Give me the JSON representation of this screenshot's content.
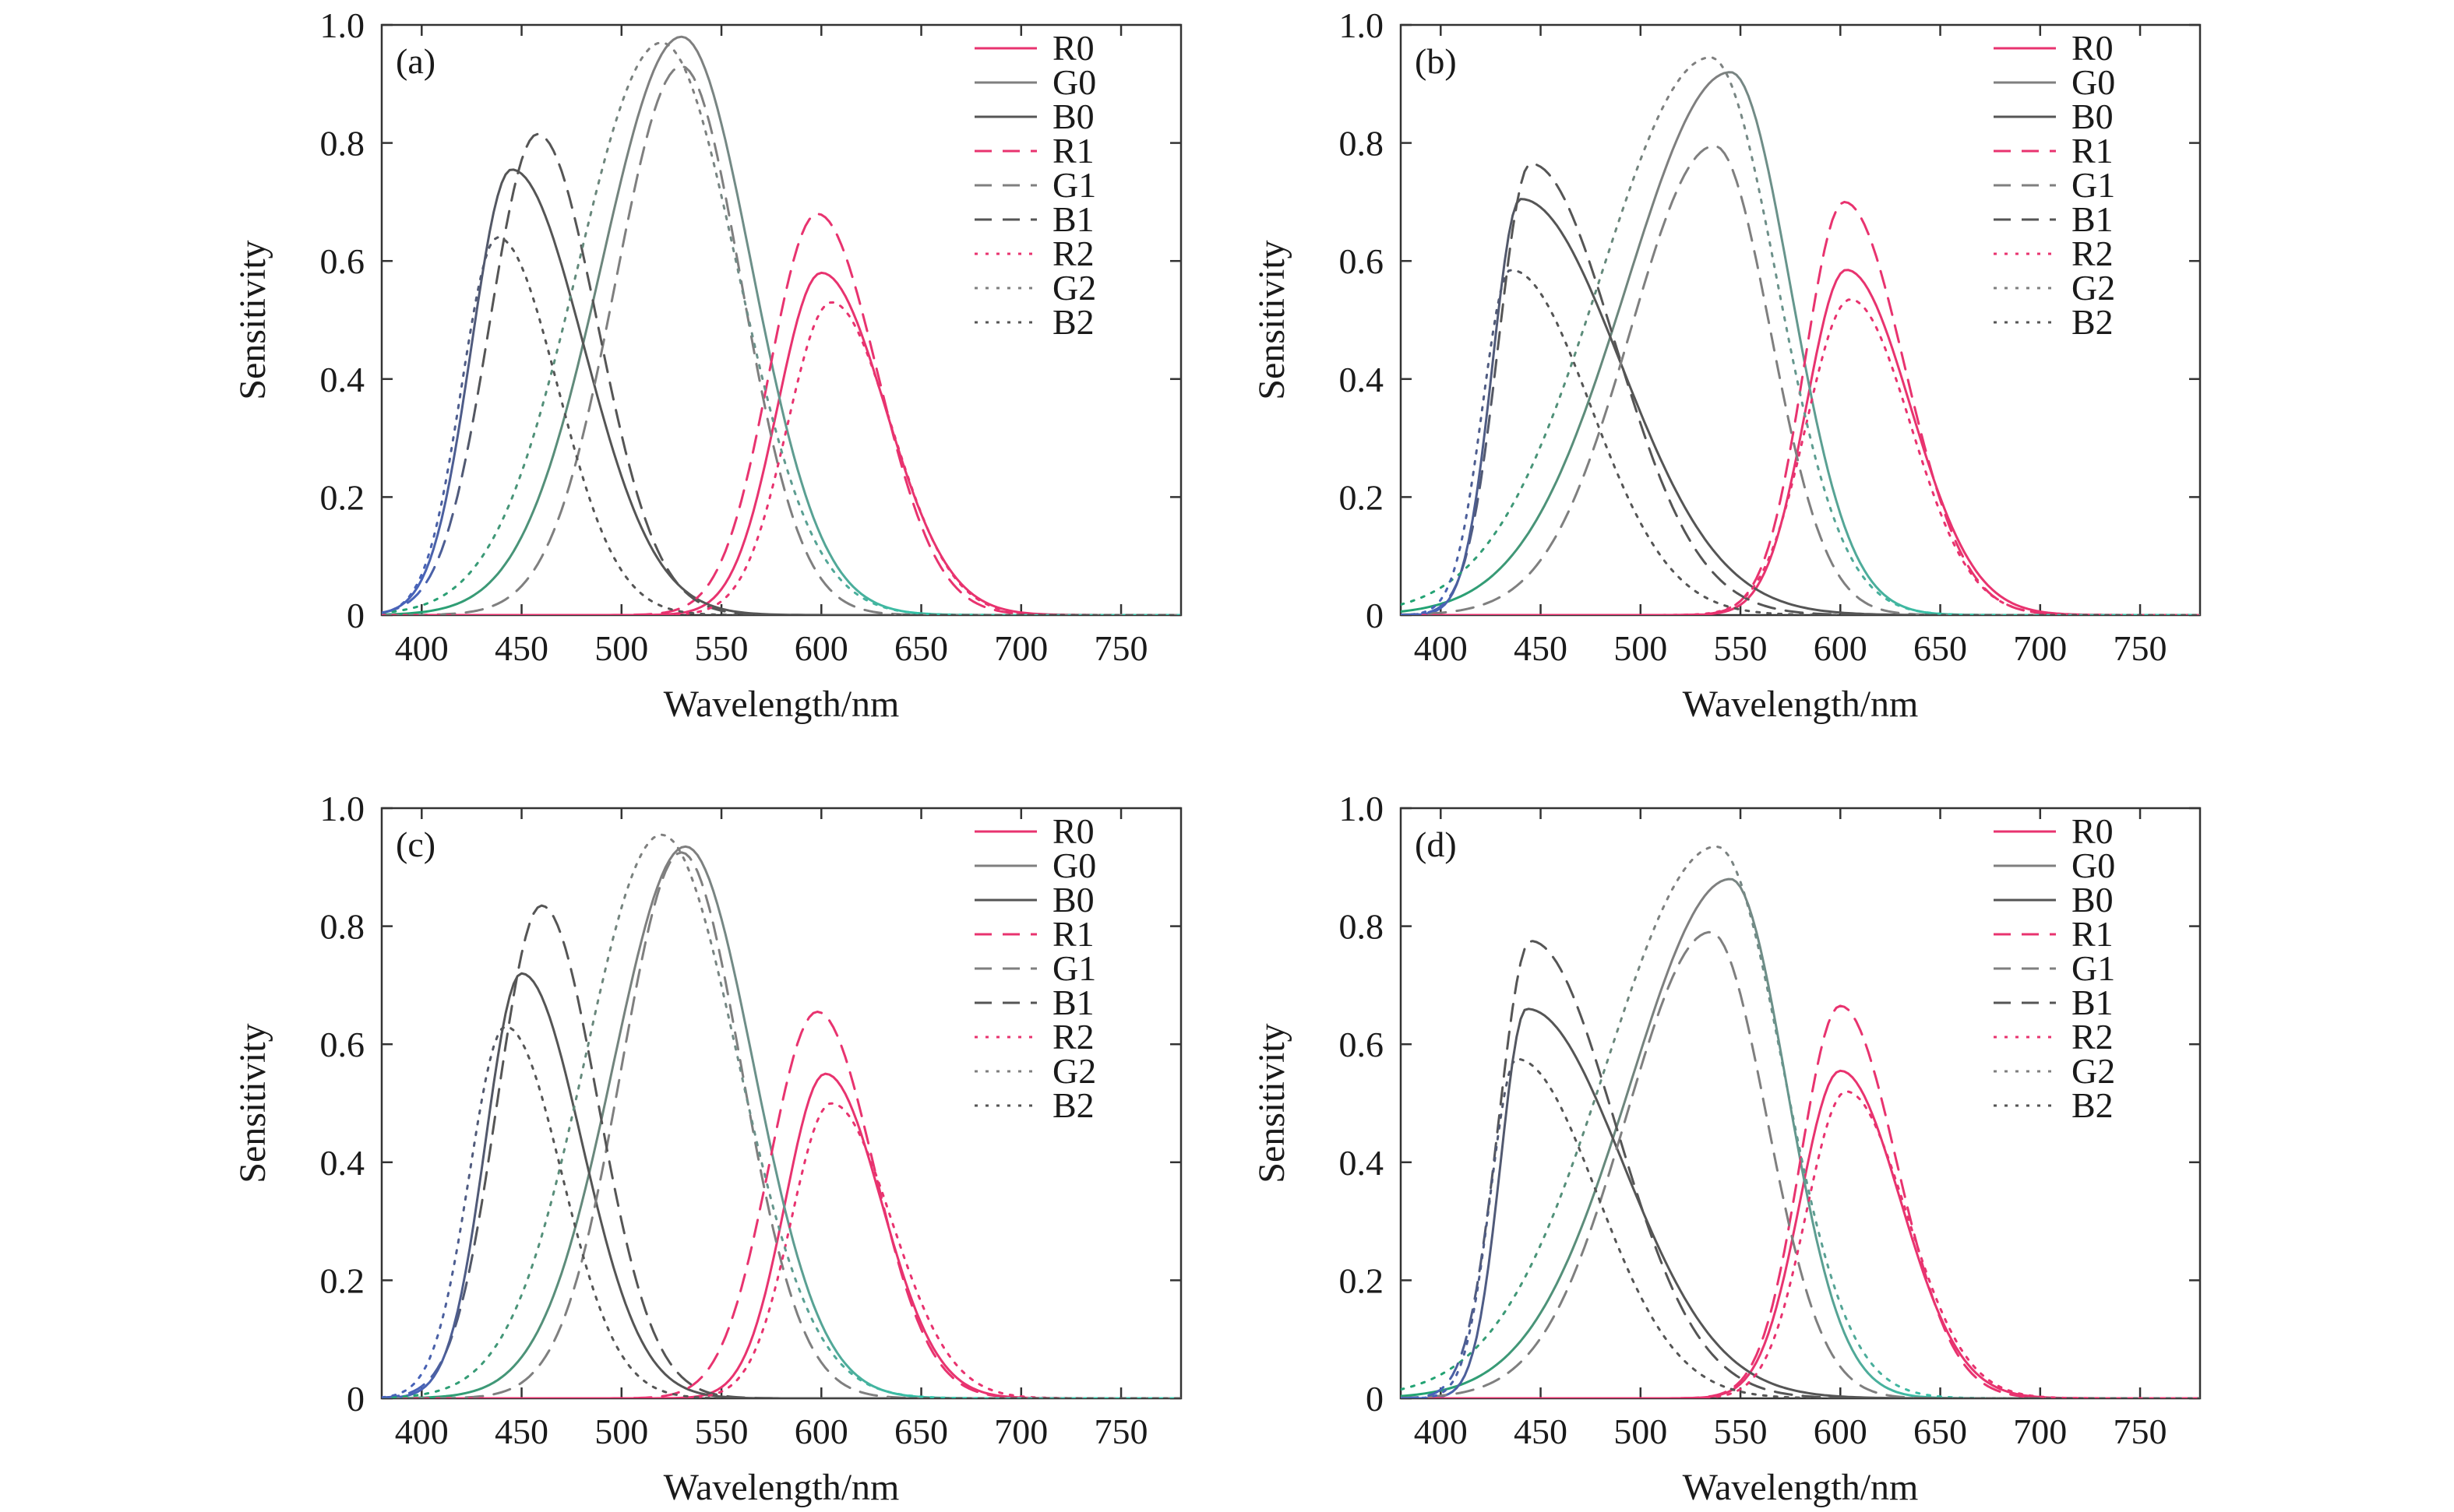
{
  "colors": {
    "R": "#e8336f",
    "G_left": "#22a373",
    "G_right": "#33c3a8",
    "G_mid": "#7f7f7f",
    "B_left": "#4863b8",
    "B_dark": "#555555",
    "axis": "#333333"
  },
  "chart_data": [
    {
      "type": "line",
      "panel_label": "(a)",
      "xlabel": "Wavelength/nm",
      "ylabel": "Sensitivity",
      "xlim": [
        380,
        780
      ],
      "ylim": [
        0,
        1.0
      ],
      "xticks": [
        "400",
        "450",
        "500",
        "550",
        "600",
        "650",
        "700",
        "750"
      ],
      "yticks": [
        "0",
        "0.2",
        "0.4",
        "0.6",
        "0.8",
        "1.0"
      ],
      "legend_position": "top-right",
      "legend": [
        "R0",
        "G0",
        "B0",
        "R1",
        "G1",
        "B1",
        "R2",
        "G2",
        "B2"
      ],
      "series": [
        {
          "name": "R0",
          "peak_x": 600,
          "peak_y": 0.58,
          "sigma_left": 22,
          "sigma_right": 32
        },
        {
          "name": "G0",
          "peak_x": 530,
          "peak_y": 0.98,
          "sigma_left": 40,
          "sigma_right": 35
        },
        {
          "name": "B0",
          "peak_x": 445,
          "peak_y": 0.755,
          "sigma_left": 20,
          "sigma_right": 36
        },
        {
          "name": "R1",
          "peak_x": 598,
          "peak_y": 0.68,
          "sigma_left": 24,
          "sigma_right": 30
        },
        {
          "name": "G1",
          "peak_x": 530,
          "peak_y": 0.93,
          "sigma_left": 33,
          "sigma_right": 30
        },
        {
          "name": "B1",
          "peak_x": 458,
          "peak_y": 0.815,
          "sigma_left": 24,
          "sigma_right": 30
        },
        {
          "name": "R2",
          "peak_x": 605,
          "peak_y": 0.53,
          "sigma_left": 22,
          "sigma_right": 30
        },
        {
          "name": "G2",
          "peak_x": 520,
          "peak_y": 0.97,
          "sigma_left": 42,
          "sigma_right": 38
        },
        {
          "name": "B2",
          "peak_x": 438,
          "peak_y": 0.64,
          "sigma_left": 18,
          "sigma_right": 30
        }
      ]
    },
    {
      "type": "line",
      "panel_label": "(b)",
      "xlabel": "Wavelength/nm",
      "ylabel": "Sensitivity",
      "xlim": [
        380,
        780
      ],
      "ylim": [
        0,
        1.0
      ],
      "xticks": [
        "400",
        "450",
        "500",
        "550",
        "600",
        "650",
        "700",
        "750"
      ],
      "yticks": [
        "0",
        "0.2",
        "0.4",
        "0.6",
        "0.8",
        "1.0"
      ],
      "legend_position": "top-right",
      "legend": [
        "R0",
        "G0",
        "B0",
        "R1",
        "G1",
        "B1",
        "R2",
        "G2",
        "B2"
      ],
      "series": [
        {
          "name": "R0",
          "peak_x": 603,
          "peak_y": 0.585,
          "sigma_left": 20,
          "sigma_right": 32
        },
        {
          "name": "G0",
          "peak_x": 545,
          "peak_y": 0.92,
          "sigma_left": 52,
          "sigma_right": 30
        },
        {
          "name": "B0",
          "peak_x": 440,
          "peak_y": 0.705,
          "sigma_left": 14,
          "sigma_right": 50
        },
        {
          "name": "R1",
          "peak_x": 602,
          "peak_y": 0.7,
          "sigma_left": 20,
          "sigma_right": 30
        },
        {
          "name": "G1",
          "peak_x": 537,
          "peak_y": 0.795,
          "sigma_left": 42,
          "sigma_right": 28
        },
        {
          "name": "B1",
          "peak_x": 445,
          "peak_y": 0.765,
          "sigma_left": 16,
          "sigma_right": 42
        },
        {
          "name": "R2",
          "peak_x": 605,
          "peak_y": 0.535,
          "sigma_left": 22,
          "sigma_right": 30
        },
        {
          "name": "G2",
          "peak_x": 535,
          "peak_y": 0.945,
          "sigma_left": 55,
          "sigma_right": 33
        },
        {
          "name": "B2",
          "peak_x": 435,
          "peak_y": 0.585,
          "sigma_left": 14,
          "sigma_right": 40
        }
      ]
    },
    {
      "type": "line",
      "panel_label": "(c)",
      "xlabel": "Wavelength/nm",
      "ylabel": "Sensitivity",
      "xlim": [
        380,
        780
      ],
      "ylim": [
        0,
        1.0
      ],
      "xticks": [
        "400",
        "450",
        "500",
        "550",
        "600",
        "650",
        "700",
        "750"
      ],
      "yticks": [
        "0",
        "0.2",
        "0.4",
        "0.6",
        "0.8",
        "1.0"
      ],
      "legend_position": "top-right",
      "legend": [
        "R0",
        "G0",
        "B0",
        "R1",
        "G1",
        "B1",
        "R2",
        "G2",
        "B2"
      ],
      "series": [
        {
          "name": "R0",
          "peak_x": 602,
          "peak_y": 0.55,
          "sigma_left": 20,
          "sigma_right": 28
        },
        {
          "name": "G0",
          "peak_x": 532,
          "peak_y": 0.935,
          "sigma_left": 36,
          "sigma_right": 34
        },
        {
          "name": "B0",
          "peak_x": 450,
          "peak_y": 0.72,
          "sigma_left": 18,
          "sigma_right": 30
        },
        {
          "name": "R1",
          "peak_x": 598,
          "peak_y": 0.655,
          "sigma_left": 24,
          "sigma_right": 28
        },
        {
          "name": "G1",
          "peak_x": 530,
          "peak_y": 0.925,
          "sigma_left": 30,
          "sigma_right": 30
        },
        {
          "name": "B1",
          "peak_x": 460,
          "peak_y": 0.835,
          "sigma_left": 22,
          "sigma_right": 28
        },
        {
          "name": "R2",
          "peak_x": 605,
          "peak_y": 0.5,
          "sigma_left": 20,
          "sigma_right": 30
        },
        {
          "name": "G2",
          "peak_x": 520,
          "peak_y": 0.955,
          "sigma_left": 38,
          "sigma_right": 38
        },
        {
          "name": "B2",
          "peak_x": 442,
          "peak_y": 0.63,
          "sigma_left": 18,
          "sigma_right": 28
        }
      ]
    },
    {
      "type": "line",
      "panel_label": "(d)",
      "xlabel": "Wavelength/nm",
      "ylabel": "Sensitivity",
      "xlim": [
        380,
        780
      ],
      "ylim": [
        0,
        1.0
      ],
      "xticks": [
        "400",
        "450",
        "500",
        "550",
        "600",
        "650",
        "700",
        "750"
      ],
      "yticks": [
        "0",
        "0.2",
        "0.4",
        "0.6",
        "0.8",
        "1.0"
      ],
      "legend_position": "top-right",
      "legend": [
        "R0",
        "G0",
        "B0",
        "R1",
        "G1",
        "B1",
        "R2",
        "G2",
        "B2"
      ],
      "series": [
        {
          "name": "R0",
          "peak_x": 600,
          "peak_y": 0.555,
          "sigma_left": 20,
          "sigma_right": 30
        },
        {
          "name": "G0",
          "peak_x": 545,
          "peak_y": 0.88,
          "sigma_left": 50,
          "sigma_right": 28
        },
        {
          "name": "B0",
          "peak_x": 443,
          "peak_y": 0.66,
          "sigma_left": 13,
          "sigma_right": 48
        },
        {
          "name": "R1",
          "peak_x": 600,
          "peak_y": 0.665,
          "sigma_left": 20,
          "sigma_right": 28
        },
        {
          "name": "G1",
          "peak_x": 535,
          "peak_y": 0.79,
          "sigma_left": 42,
          "sigma_right": 28
        },
        {
          "name": "B1",
          "peak_x": 445,
          "peak_y": 0.775,
          "sigma_left": 16,
          "sigma_right": 42
        },
        {
          "name": "R2",
          "peak_x": 603,
          "peak_y": 0.52,
          "sigma_left": 20,
          "sigma_right": 30
        },
        {
          "name": "G2",
          "peak_x": 538,
          "peak_y": 0.935,
          "sigma_left": 55,
          "sigma_right": 33
        },
        {
          "name": "B2",
          "peak_x": 438,
          "peak_y": 0.575,
          "sigma_left": 13,
          "sigma_right": 40
        }
      ]
    }
  ]
}
